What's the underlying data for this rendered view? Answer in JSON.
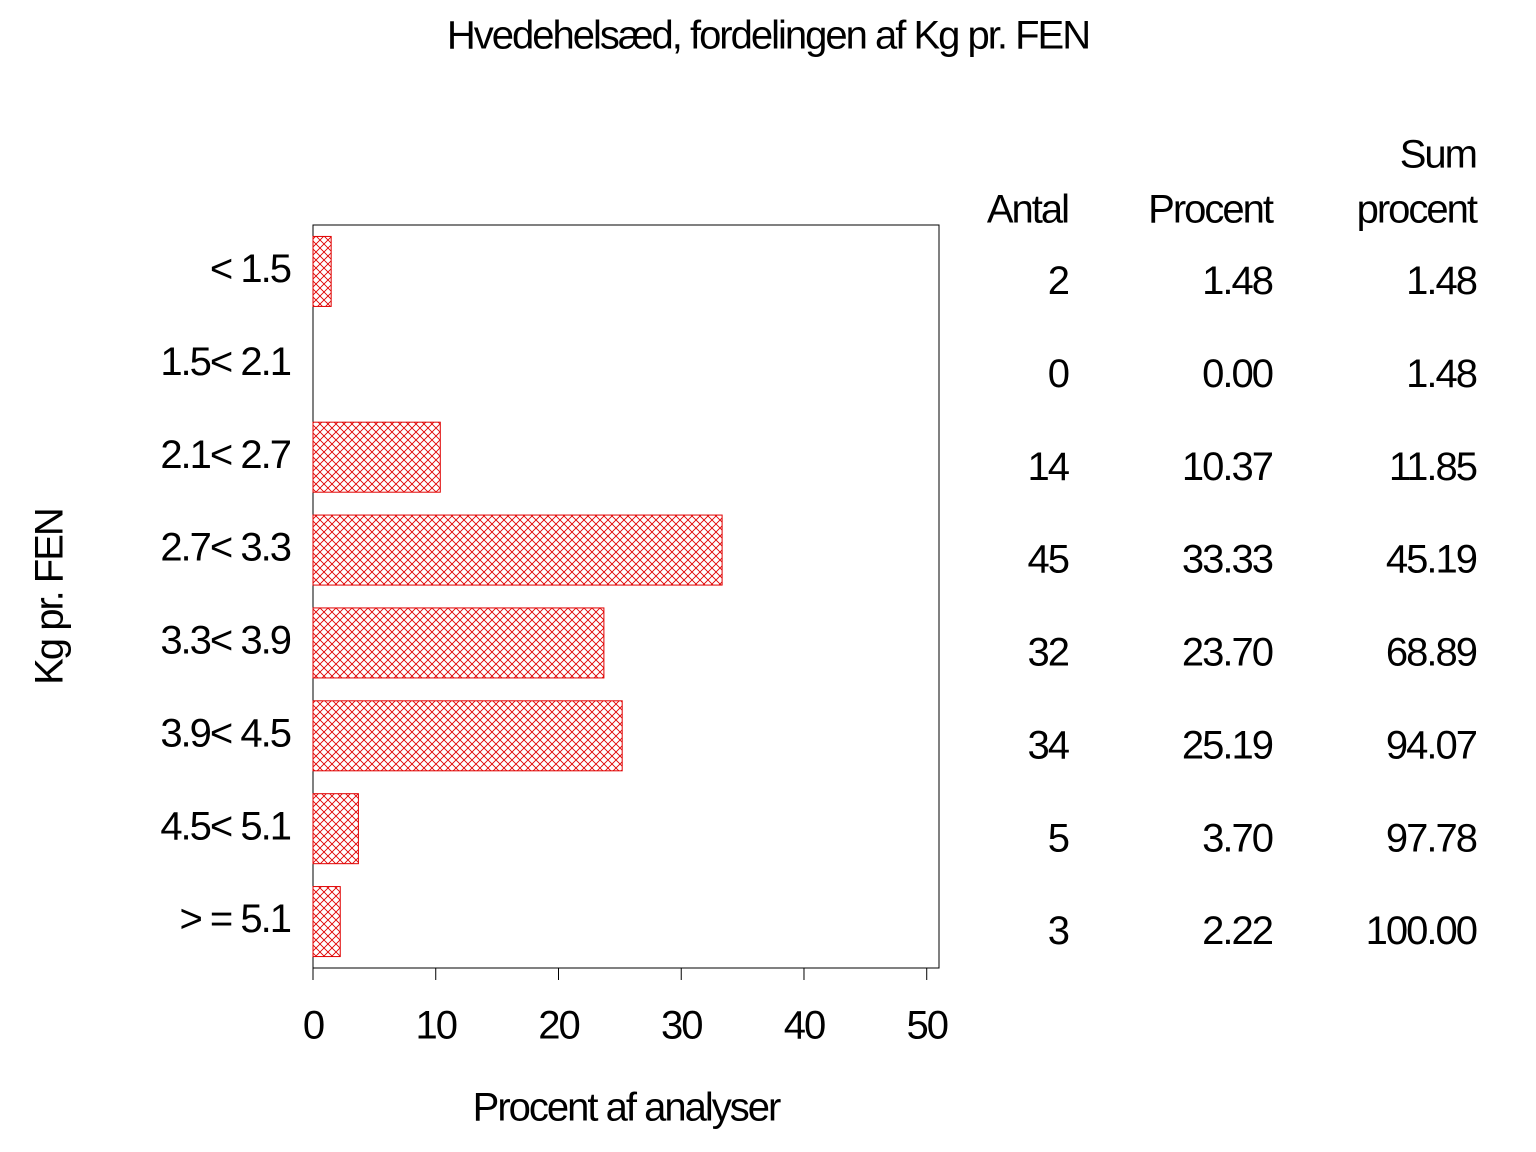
{
  "chart_data": {
    "type": "bar",
    "orientation": "horizontal",
    "title": "Hvedehelsæd, fordelingen af Kg pr. FEN",
    "xlabel": "Procent af analyser",
    "ylabel": "Kg pr. FEN",
    "categories": [
      "< 1.5",
      "1.5< 2.1",
      "2.1< 2.7",
      "2.7< 3.3",
      "3.3< 3.9",
      "3.9< 4.5",
      "4.5< 5.1",
      "> = 5.1"
    ],
    "values": [
      1.48,
      0,
      10.37,
      33.33,
      23.7,
      25.19,
      3.7,
      2.22
    ],
    "value_labels": [
      "1.48",
      "0.00",
      "10.37",
      "33.33",
      "23.70",
      "25.19",
      "3.70",
      "2.22"
    ],
    "color": "#e00000",
    "xlim": [
      0,
      51
    ],
    "xticks": [
      0,
      10,
      20,
      30,
      40,
      50
    ],
    "table": {
      "columns": [
        {
          "header": [
            "Antal"
          ],
          "values": [
            2,
            0,
            14,
            45,
            32,
            34,
            5,
            3
          ]
        },
        {
          "header": [
            "Procent"
          ]
        },
        {
          "header": [
            "Sum",
            "procent"
          ],
          "values": [
            1.48,
            1.48,
            11.85,
            45.19,
            68.89,
            94.07,
            97.78,
            100
          ],
          "value_labels": [
            "1.48",
            "1.48",
            "11.85",
            "45.19",
            "68.89",
            "94.07",
            "97.78",
            "100.00"
          ]
        }
      ]
    }
  }
}
